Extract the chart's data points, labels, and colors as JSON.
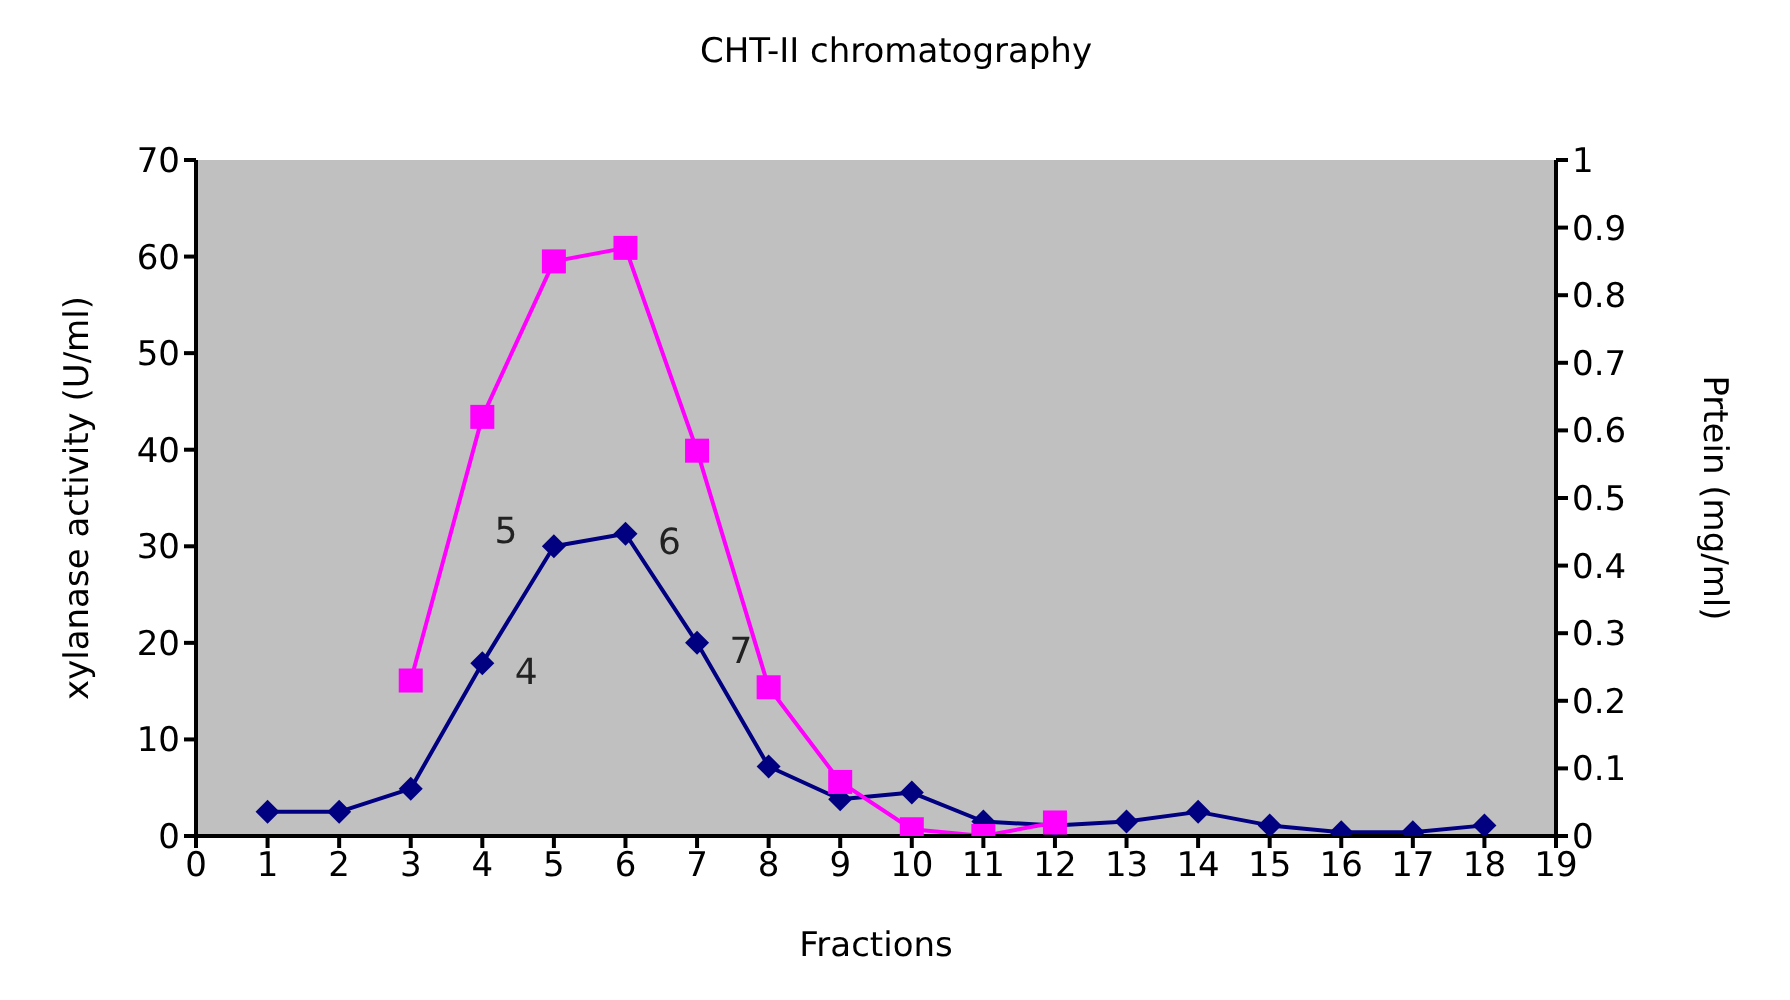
{
  "chart_data": {
    "type": "line",
    "title": "CHT-II chromatography",
    "xlabel": "Fractions",
    "ylabel": "xylanase activity (U/ml)",
    "y2label": "Prtein (mg/ml)",
    "x": [
      1,
      2,
      3,
      4,
      5,
      6,
      7,
      8,
      9,
      10,
      11,
      12,
      13,
      14,
      15,
      16,
      17,
      18
    ],
    "series": [
      {
        "color": "#000080",
        "marker": "diamond",
        "values": [
          2.5,
          2.5,
          4.9,
          17.9,
          30,
          31.3,
          20,
          7.2,
          3.8,
          4.5,
          1.5,
          1.1,
          1.5,
          2.5,
          1.1,
          0.4,
          0.4,
          1.1
        ]
      },
      {
        "color": "#ff00ff",
        "marker": "square",
        "axis": "y2",
        "x": [
          3,
          4,
          5,
          6,
          7,
          8,
          9,
          10,
          11,
          12
        ],
        "values": [
          0.23,
          0.62,
          0.85,
          0.87,
          0.57,
          0.22,
          0.08,
          0.01,
          0,
          0.02
        ]
      }
    ],
    "xlim": [
      0,
      19
    ],
    "xticks": [
      0,
      1,
      2,
      3,
      4,
      5,
      6,
      7,
      8,
      9,
      10,
      11,
      12,
      13,
      14,
      15,
      16,
      17,
      18,
      19
    ],
    "ylim": [
      0,
      70
    ],
    "yticks": [
      0,
      10,
      20,
      30,
      40,
      50,
      60,
      70
    ],
    "y2lim": [
      0,
      1
    ],
    "y2ticks": [
      0,
      0.1,
      0.2,
      0.3,
      0.4,
      0.5,
      0.6,
      0.7,
      0.8,
      0.9,
      1
    ],
    "annotations": [
      {
        "text": "4",
        "x": 4,
        "y": 17.9
      },
      {
        "text": "5",
        "x": 5,
        "y": 30
      },
      {
        "text": "6",
        "x": 6,
        "y": 31.3
      },
      {
        "text": "7",
        "x": 7,
        "y": 20
      }
    ],
    "grid": false
  }
}
